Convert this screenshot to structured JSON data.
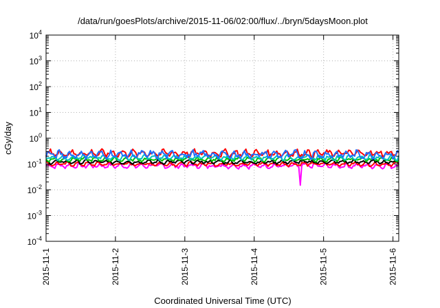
{
  "chart_data": {
    "type": "line",
    "title": "/data/run/goesPlots/archive/2015-11-06/02:00/flux/../bryn/5daysMoon.plot",
    "xlabel": "Coordinated Universal Time (UTC)",
    "ylabel": "cGy/day",
    "yscale": "log",
    "ylim": [
      0.0001,
      10000
    ],
    "xlim": [
      "2015-11-01",
      "2015-11-06 02:00"
    ],
    "x_ticks": [
      "2015-11-1",
      "2015-11-2",
      "2015-11-3",
      "2015-11-4",
      "2015-11-5",
      "2015-11-6"
    ],
    "y_ticks": [
      {
        "base": "10",
        "exp": "-4"
      },
      {
        "base": "10",
        "exp": "-3"
      },
      {
        "base": "10",
        "exp": "-2"
      },
      {
        "base": "10",
        "exp": "-1"
      },
      {
        "base": "10",
        "exp": "0"
      },
      {
        "base": "10",
        "exp": "1"
      },
      {
        "base": "10",
        "exp": "2"
      },
      {
        "base": "10",
        "exp": "3"
      },
      {
        "base": "10",
        "exp": "4"
      }
    ],
    "grid": true,
    "legend": "none",
    "series": [
      {
        "color": "#ff00ff",
        "level": 0.085,
        "spread": 0.25,
        "dips": [
          {
            "x": "2015-11-04 16:00",
            "y": 0.015
          }
        ]
      },
      {
        "color": "#ff0000",
        "level": 0.1,
        "spread": 0.2,
        "dips": []
      },
      {
        "color": "#000000",
        "level": 0.12,
        "spread": 0.2,
        "dips": []
      },
      {
        "color": "#00c000",
        "level": 0.15,
        "spread": 0.2,
        "dips": []
      },
      {
        "color": "#00c0c0",
        "level": 0.18,
        "spread": 0.25,
        "dips": []
      },
      {
        "color": "#ff0000",
        "level": 0.26,
        "spread": 0.35,
        "dips": []
      },
      {
        "color": "#1f6fff",
        "level": 0.23,
        "spread": 0.4,
        "dips": []
      }
    ]
  }
}
